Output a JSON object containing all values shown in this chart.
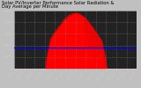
{
  "title_line1": "Solar PV/Inverter Performance Solar Radiation &",
  "title_line2": "Day Average per Minute",
  "bg_color": "#c0c0c0",
  "plot_bg_color": "#222222",
  "fill_color": "#ff0000",
  "line_color": "#ff0000",
  "avg_line_color": "#0000ff",
  "grid_color": "#888888",
  "num_points": 1440,
  "peak_value": 950,
  "avg_value": 370,
  "ylim": [
    0,
    1000
  ],
  "yticks": [
    0,
    200,
    400,
    600,
    800,
    1000
  ],
  "title_fontsize": 3.8,
  "tick_fontsize": 3.2,
  "axis_color": "#cccccc",
  "title_color": "#000000",
  "left_label_color": "#000000"
}
